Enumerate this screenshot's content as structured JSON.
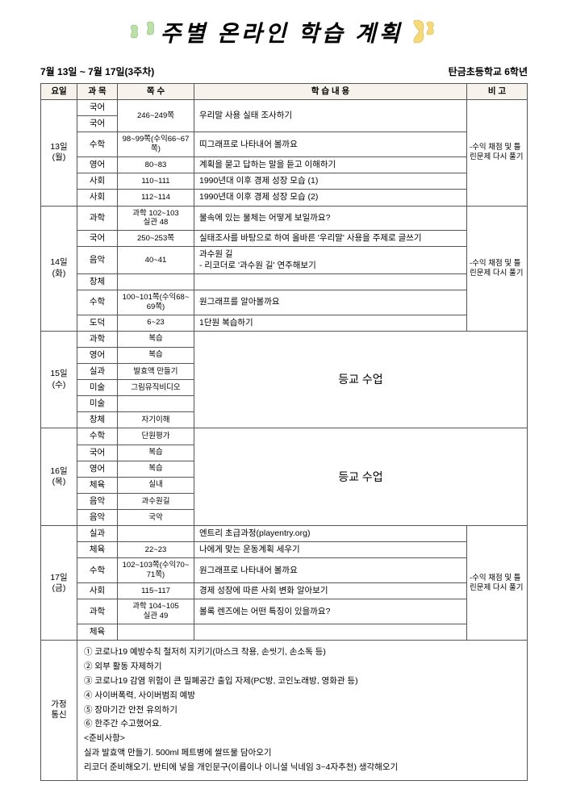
{
  "title": "주별 온라인 학습 계획",
  "period": "7월 13일 ~ 7월 17일(3주차)",
  "school": "탄금초등학교 6학년",
  "headers": {
    "day": "요일",
    "subject": "과 목",
    "pages": "쪽 수",
    "content": "학 습 내 용",
    "note": "비 고"
  },
  "note_common": "-수익 채점 및 틀린문제 다시 풀기",
  "center_text": "등교 수업",
  "days": {
    "d13": {
      "label": "13일\n(월)",
      "rows": [
        {
          "s": "국어",
          "p": "",
          "c": "우리말 사용 실태 조사하기",
          "merge_p": 2,
          "merge_c": 2
        },
        {
          "s": "국어",
          "p": "246~249쪽",
          "c": ""
        },
        {
          "s": "수학",
          "p": "98~99쪽(수익66~67쪽)",
          "c": "띠그래프로 나타내어 볼까요"
        },
        {
          "s": "영어",
          "p": "80~83",
          "c": "계획을 묻고 답하는 말을 듣고 이해하기"
        },
        {
          "s": "사회",
          "p": "110~111",
          "c": "1990년대 이후 경제 성장 모습 (1)"
        },
        {
          "s": "사회",
          "p": "112~114",
          "c": "1990년대 이후 경제 성장 모습 (2)"
        }
      ]
    },
    "d14": {
      "label": "14일\n(화)",
      "rows": [
        {
          "s": "과학",
          "p": "과학 102~103\n실관 48",
          "c": "물속에 있는 물체는 어떻게 보일까요?"
        },
        {
          "s": "국어",
          "p": "250~253쪽",
          "c": "실태조사를 바탕으로 하여 올바른 '우리말' 사용을 주제로 글쓰기"
        },
        {
          "s": "음악",
          "p": "40~41",
          "c": "과수원 길\n- 리코더로 '과수원 길' 연주해보기"
        },
        {
          "s": "창체",
          "p": "",
          "c": ""
        },
        {
          "s": "수학",
          "p": "100~101쪽(수익68~69쪽)",
          "c": "원그래프를 알아볼까요"
        },
        {
          "s": "도덕",
          "p": "6~23",
          "c": "1단원 복습하기"
        }
      ]
    },
    "d15": {
      "label": "15일\n(수)",
      "rows": [
        {
          "s": "과학",
          "p": "복습"
        },
        {
          "s": "영어",
          "p": "복습"
        },
        {
          "s": "실과",
          "p": "발효액 만들기"
        },
        {
          "s": "미술",
          "p": "그림뮤직비디오"
        },
        {
          "s": "미술",
          "p": ""
        },
        {
          "s": "창체",
          "p": "자기이해"
        }
      ]
    },
    "d16": {
      "label": "16일\n(목)",
      "rows": [
        {
          "s": "수학",
          "p": "단원평가"
        },
        {
          "s": "국어",
          "p": "복습"
        },
        {
          "s": "영어",
          "p": "복습"
        },
        {
          "s": "체육",
          "p": "실내"
        },
        {
          "s": "음악",
          "p": "과수원길"
        },
        {
          "s": "음악",
          "p": "국악"
        }
      ]
    },
    "d17": {
      "label": "17일\n(금)",
      "rows": [
        {
          "s": "실과",
          "p": "",
          "c": "엔트리 초급과정(playentry.org)"
        },
        {
          "s": "체육",
          "p": "22~23",
          "c": "나에게 맞는 운동계획 세우기"
        },
        {
          "s": "수학",
          "p": "102~103쪽(수익70~71쪽)",
          "c": "원그래프로 나타내어 볼까요"
        },
        {
          "s": "사회",
          "p": "115~117",
          "c": "경제 성장에 따른 사회 변화 알아보기"
        },
        {
          "s": "과학",
          "p": "과학 104~105\n실관 49",
          "c": "볼록 렌즈에는 어떤 특징이 있을까요?"
        },
        {
          "s": "체육",
          "p": "",
          "c": ""
        }
      ]
    }
  },
  "notice": {
    "label": "가정\n통신",
    "lines": [
      "① 코로나19 예방수칙 철저히 지키기(마스크 착용, 손씻기, 손소독 등)",
      "② 외부 활동 자제하기",
      "③ 코로나19 감염 위험이 큰 밀폐공간 출입 자제(PC방, 코인노래방, 영화관 등)",
      "④ 사이버폭력, 사이버범죄 예방",
      "⑤ 장마기간 안전 유의하기",
      "⑥ 한주간 수고했어요.",
      "<준비사항>",
      "실과 발효액 만들기. 500ml 페트병에 쌀뜨물 담아오기",
      "리코더 준비해오기. 반티에 넣을 개인문구(이름이나 이니셜 닉네임 3~4자추천) 생각해오기"
    ]
  }
}
